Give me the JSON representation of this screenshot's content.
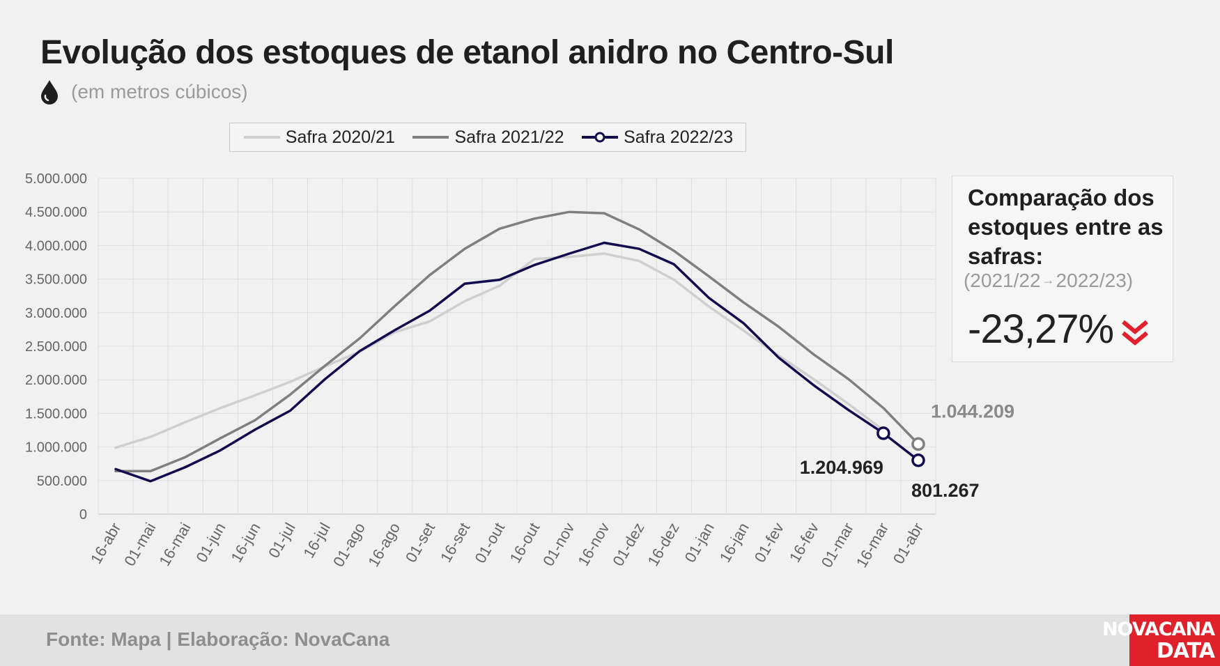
{
  "title": "Evolução dos estoques de etanol anidro no Centro-Sul",
  "subtitle": "(em metros cúbicos)",
  "subtitle_icon": "drop-icon",
  "comparison": {
    "title": "Comparação dos estoques entre as safras:",
    "period_from": "(2021/22",
    "period_arrow": "→",
    "period_to": "2022/23)",
    "value": "-23,27%",
    "icon": "double-chevron-down-icon",
    "color": "#e0202a"
  },
  "footer": {
    "source": "Fonte: Mapa | Elaboração: NovaCana",
    "brand_line1": "NOVACANA",
    "brand_line2": "DATA",
    "brand_color": "#e0202a"
  },
  "chart_data": {
    "type": "line",
    "categories": [
      "16-abr",
      "01-mai",
      "16-mai",
      "01-jun",
      "16-jun",
      "01-jul",
      "16-jul",
      "01-ago",
      "16-ago",
      "01-set",
      "16-set",
      "01-out",
      "16-out",
      "01-nov",
      "16-nov",
      "01-dez",
      "16-dez",
      "01-jan",
      "16-jan",
      "01-fev",
      "16-fev",
      "01-mar",
      "16-mar",
      "01-abr"
    ],
    "ylim": [
      0,
      5000000
    ],
    "yticks": [
      0,
      500000,
      1000000,
      1500000,
      2000000,
      2500000,
      3000000,
      3500000,
      4000000,
      4500000,
      5000000
    ],
    "ytick_labels": [
      "0",
      "500.000",
      "1.000.000",
      "1.500.000",
      "2.000.000",
      "2.500.000",
      "3.000.000",
      "3.500.000",
      "4.000.000",
      "4.500.000",
      "5.000.000"
    ],
    "grid": true,
    "legend_position": "top",
    "series": [
      {
        "name": "Safra 2020/21",
        "color": "#cfcfcf",
        "values": [
          990000,
          1150000,
          1370000,
          1580000,
          1770000,
          1970000,
          2200000,
          2420000,
          2710000,
          2870000,
          3170000,
          3400000,
          3800000,
          3830000,
          3880000,
          3770000,
          3490000,
          3090000,
          2730000,
          2360000,
          2010000,
          1640000,
          1250000,
          null
        ]
      },
      {
        "name": "Safra 2021/22",
        "color": "#7f7f7f",
        "values": [
          640000,
          640000,
          850000,
          1130000,
          1400000,
          1780000,
          2210000,
          2620000,
          3100000,
          3560000,
          3950000,
          4250000,
          4400000,
          4500000,
          4480000,
          4240000,
          3920000,
          3540000,
          3150000,
          2790000,
          2380000,
          2010000,
          1580000,
          1044209
        ]
      },
      {
        "name": "Safra 2022/23",
        "color": "#120b4e",
        "values": [
          670000,
          490000,
          700000,
          950000,
          1260000,
          1540000,
          2010000,
          2430000,
          2740000,
          3030000,
          3430000,
          3490000,
          3710000,
          3880000,
          4040000,
          3950000,
          3720000,
          3220000,
          2840000,
          2330000,
          1920000,
          1550000,
          1204969,
          801267
        ]
      }
    ],
    "annotations": [
      {
        "text": "1.044.209",
        "series": "Safra 2021/22",
        "category": "01-abr",
        "value": 1044209,
        "color": "#8a8a8a"
      },
      {
        "text": "1.204.969",
        "series": "Safra 2022/23",
        "category": "16-mar",
        "value": 1204969,
        "color": "#222222"
      },
      {
        "text": "801.267",
        "series": "Safra 2022/23",
        "category": "01-abr",
        "value": 801267,
        "color": "#222222"
      }
    ]
  }
}
